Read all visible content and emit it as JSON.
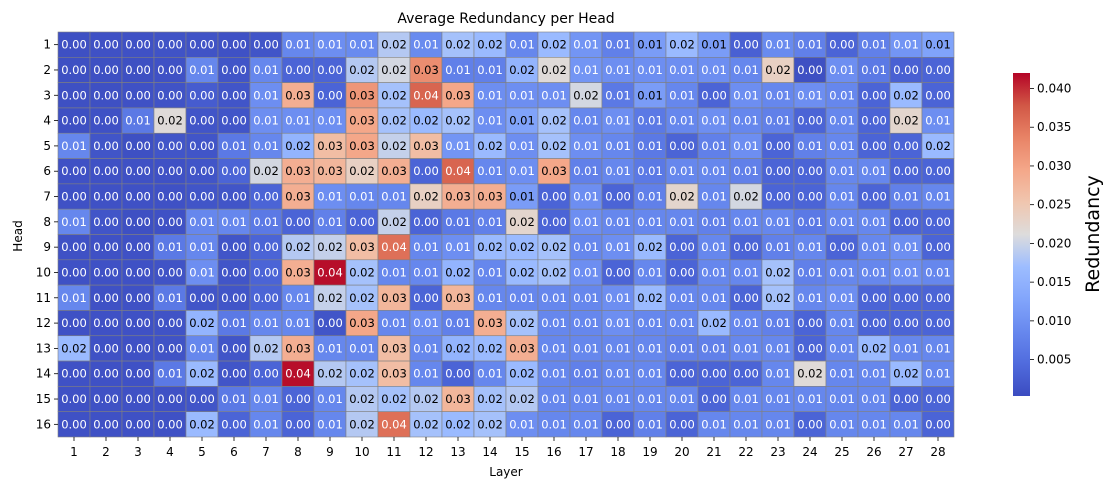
{
  "chart_data": {
    "type": "heatmap",
    "title": "Average Redundancy per Head",
    "xlabel": "Layer",
    "ylabel": "Head",
    "x": [
      "1",
      "2",
      "3",
      "4",
      "5",
      "6",
      "7",
      "8",
      "9",
      "10",
      "11",
      "12",
      "13",
      "14",
      "15",
      "16",
      "17",
      "18",
      "19",
      "20",
      "21",
      "22",
      "23",
      "24",
      "25",
      "26",
      "27",
      "28"
    ],
    "y": [
      "1",
      "2",
      "3",
      "4",
      "5",
      "6",
      "7",
      "8",
      "9",
      "10",
      "11",
      "12",
      "13",
      "14",
      "15",
      "16"
    ],
    "values": [
      [
        0.0,
        0.0,
        0.0,
        0.0,
        0.0,
        0.0,
        0.0,
        0.01,
        0.01,
        0.01,
        0.02,
        0.01,
        0.02,
        0.02,
        0.01,
        0.02,
        0.01,
        0.01,
        0.01,
        0.02,
        0.01,
        0.0,
        0.01,
        0.01,
        0.0,
        0.01,
        0.01,
        0.01
      ],
      [
        0.0,
        0.0,
        0.0,
        0.0,
        0.01,
        0.0,
        0.01,
        0.0,
        0.0,
        0.02,
        0.02,
        0.03,
        0.01,
        0.01,
        0.02,
        0.02,
        0.01,
        0.01,
        0.01,
        0.01,
        0.01,
        0.01,
        0.02,
        0.0,
        0.01,
        0.01,
        0.0,
        0.0
      ],
      [
        0.0,
        0.0,
        0.0,
        0.0,
        0.0,
        0.0,
        0.01,
        0.03,
        0.0,
        0.03,
        0.02,
        0.04,
        0.03,
        0.01,
        0.01,
        0.01,
        0.02,
        0.01,
        0.01,
        0.01,
        0.0,
        0.01,
        0.01,
        0.01,
        0.01,
        0.0,
        0.02,
        0.0
      ],
      [
        0.0,
        0.0,
        0.01,
        0.02,
        0.0,
        0.0,
        0.01,
        0.01,
        0.01,
        0.03,
        0.02,
        0.02,
        0.02,
        0.01,
        0.01,
        0.02,
        0.01,
        0.01,
        0.01,
        0.01,
        0.01,
        0.01,
        0.01,
        0.0,
        0.01,
        0.0,
        0.02,
        0.01
      ],
      [
        0.01,
        0.0,
        0.0,
        0.0,
        0.0,
        0.01,
        0.01,
        0.02,
        0.03,
        0.03,
        0.02,
        0.03,
        0.01,
        0.02,
        0.01,
        0.02,
        0.01,
        0.01,
        0.01,
        0.0,
        0.01,
        0.01,
        0.0,
        0.01,
        0.01,
        0.0,
        0.0,
        0.02
      ],
      [
        0.0,
        0.0,
        0.0,
        0.0,
        0.0,
        0.0,
        0.02,
        0.03,
        0.03,
        0.02,
        0.03,
        0.0,
        0.04,
        0.01,
        0.01,
        0.03,
        0.01,
        0.01,
        0.01,
        0.01,
        0.01,
        0.01,
        0.0,
        0.0,
        0.01,
        0.01,
        0.0,
        0.0
      ],
      [
        0.0,
        0.0,
        0.0,
        0.0,
        0.0,
        0.0,
        0.0,
        0.03,
        0.01,
        0.01,
        0.01,
        0.02,
        0.03,
        0.03,
        0.01,
        0.0,
        0.01,
        0.0,
        0.01,
        0.02,
        0.01,
        0.02,
        0.0,
        0.0,
        0.01,
        0.0,
        0.01,
        0.01
      ],
      [
        0.01,
        0.0,
        0.0,
        0.0,
        0.01,
        0.01,
        0.01,
        0.0,
        0.01,
        0.0,
        0.02,
        0.0,
        0.01,
        0.01,
        0.02,
        0.0,
        0.01,
        0.01,
        0.01,
        0.01,
        0.01,
        0.01,
        0.01,
        0.01,
        0.01,
        0.01,
        0.0,
        0.0
      ],
      [
        0.0,
        0.0,
        0.0,
        0.01,
        0.01,
        0.0,
        0.0,
        0.02,
        0.02,
        0.03,
        0.04,
        0.01,
        0.01,
        0.02,
        0.02,
        0.02,
        0.01,
        0.01,
        0.02,
        0.0,
        0.01,
        0.0,
        0.01,
        0.01,
        0.0,
        0.01,
        0.01,
        0.0
      ],
      [
        0.0,
        0.0,
        0.0,
        0.0,
        0.01,
        0.0,
        0.0,
        0.03,
        0.04,
        0.02,
        0.01,
        0.01,
        0.02,
        0.01,
        0.02,
        0.02,
        0.01,
        0.0,
        0.01,
        0.0,
        0.01,
        0.01,
        0.02,
        0.01,
        0.01,
        0.01,
        0.01,
        0.01
      ],
      [
        0.01,
        0.0,
        0.0,
        0.01,
        0.0,
        0.0,
        0.0,
        0.01,
        0.02,
        0.02,
        0.03,
        0.0,
        0.03,
        0.01,
        0.01,
        0.01,
        0.01,
        0.01,
        0.02,
        0.01,
        0.01,
        0.0,
        0.02,
        0.01,
        0.01,
        0.0,
        0.0,
        0.0
      ],
      [
        0.0,
        0.0,
        0.0,
        0.0,
        0.02,
        0.01,
        0.01,
        0.01,
        0.0,
        0.03,
        0.01,
        0.01,
        0.01,
        0.03,
        0.02,
        0.01,
        0.01,
        0.01,
        0.01,
        0.01,
        0.02,
        0.01,
        0.01,
        0.0,
        0.01,
        0.0,
        0.0,
        0.0
      ],
      [
        0.02,
        0.0,
        0.0,
        0.0,
        0.01,
        0.0,
        0.02,
        0.03,
        0.01,
        0.01,
        0.03,
        0.01,
        0.02,
        0.02,
        0.03,
        0.01,
        0.01,
        0.01,
        0.01,
        0.01,
        0.01,
        0.01,
        0.01,
        0.0,
        0.01,
        0.02,
        0.01,
        0.01
      ],
      [
        0.0,
        0.0,
        0.0,
        0.01,
        0.02,
        0.0,
        0.0,
        0.04,
        0.02,
        0.02,
        0.03,
        0.01,
        0.0,
        0.01,
        0.02,
        0.01,
        0.01,
        0.01,
        0.01,
        0.0,
        0.0,
        0.0,
        0.01,
        0.02,
        0.01,
        0.01,
        0.02,
        0.01
      ],
      [
        0.0,
        0.0,
        0.0,
        0.0,
        0.0,
        0.01,
        0.01,
        0.0,
        0.01,
        0.02,
        0.02,
        0.02,
        0.03,
        0.02,
        0.02,
        0.01,
        0.01,
        0.01,
        0.01,
        0.01,
        0.0,
        0.01,
        0.01,
        0.01,
        0.01,
        0.01,
        0.0,
        0.0
      ],
      [
        0.0,
        0.0,
        0.0,
        0.0,
        0.02,
        0.0,
        0.01,
        0.0,
        0.01,
        0.02,
        0.04,
        0.02,
        0.02,
        0.02,
        0.01,
        0.01,
        0.01,
        0.0,
        0.01,
        0.0,
        0.01,
        0.01,
        0.01,
        0.0,
        0.01,
        0.01,
        0.01,
        0.0
      ]
    ],
    "display": [
      [
        0.0008,
        0.001,
        0.001,
        0.0012,
        0.0012,
        0.001,
        0.0015,
        0.0085,
        0.0095,
        0.009,
        0.0185,
        0.009,
        0.0175,
        0.0165,
        0.0085,
        0.0165,
        0.0105,
        0.0075,
        0.0115,
        0.0165,
        0.0115,
        0.003,
        0.009,
        0.0075,
        0.0035,
        0.0075,
        0.0105,
        0.0125
      ],
      [
        0.0008,
        0.0008,
        0.0008,
        0.001,
        0.0085,
        0.0015,
        0.0085,
        0.0035,
        0.0035,
        0.0185,
        0.0205,
        0.0325,
        0.0075,
        0.0075,
        0.0155,
        0.0215,
        0.0105,
        0.0095,
        0.0095,
        0.0095,
        0.0095,
        0.0085,
        0.0235,
        0.0008,
        0.0095,
        0.0065,
        0.003,
        0.0035
      ],
      [
        0.0008,
        0.0008,
        0.001,
        0.0012,
        0.0025,
        0.0015,
        0.0095,
        0.0285,
        0.0035,
        0.0315,
        0.0175,
        0.0365,
        0.0295,
        0.0095,
        0.0095,
        0.0095,
        0.0205,
        0.0065,
        0.0115,
        0.0085,
        0.0035,
        0.0095,
        0.0085,
        0.0095,
        0.0085,
        0.0035,
        0.0165,
        0.0035
      ],
      [
        0.0008,
        0.001,
        0.0065,
        0.0215,
        0.0015,
        0.0015,
        0.0095,
        0.0095,
        0.0095,
        0.0295,
        0.0175,
        0.0165,
        0.0175,
        0.0095,
        0.0125,
        0.0175,
        0.0085,
        0.0095,
        0.0065,
        0.0085,
        0.0095,
        0.0085,
        0.0075,
        0.0035,
        0.0085,
        0.0035,
        0.0225,
        0.0095
      ],
      [
        0.0085,
        0.0015,
        0.0008,
        0.0015,
        0.0015,
        0.0065,
        0.0085,
        0.0155,
        0.0265,
        0.0295,
        0.0195,
        0.0265,
        0.0105,
        0.0165,
        0.0095,
        0.0175,
        0.0095,
        0.0085,
        0.0065,
        0.0035,
        0.0075,
        0.0095,
        0.0035,
        0.0075,
        0.0085,
        0.0035,
        0.0035,
        0.0165
      ],
      [
        0.001,
        0.001,
        0.001,
        0.001,
        0.0015,
        0.0035,
        0.0205,
        0.0285,
        0.0275,
        0.0235,
        0.0285,
        0.0035,
        0.0365,
        0.0085,
        0.0095,
        0.0295,
        0.0075,
        0.0085,
        0.0065,
        0.0085,
        0.0085,
        0.0075,
        0.0035,
        0.0035,
        0.0085,
        0.0085,
        0.0035,
        0.0035
      ],
      [
        0.001,
        0.001,
        0.001,
        0.001,
        0.0015,
        0.0015,
        0.0035,
        0.0285,
        0.0095,
        0.0085,
        0.0085,
        0.0235,
        0.0285,
        0.0285,
        0.0115,
        0.0035,
        0.0095,
        0.0035,
        0.0075,
        0.0225,
        0.0085,
        0.0205,
        0.0035,
        0.0035,
        0.0085,
        0.0035,
        0.0075,
        0.0085
      ],
      [
        0.0085,
        0.0015,
        0.0008,
        0.001,
        0.0085,
        0.0085,
        0.0065,
        0.0035,
        0.0075,
        0.0035,
        0.0195,
        0.0035,
        0.0065,
        0.0075,
        0.0225,
        0.0035,
        0.0095,
        0.0085,
        0.0085,
        0.0085,
        0.0075,
        0.0085,
        0.0085,
        0.0065,
        0.0085,
        0.0085,
        0.0035,
        0.0035
      ],
      [
        0.001,
        0.001,
        0.001,
        0.0065,
        0.0085,
        0.0015,
        0.0035,
        0.0185,
        0.0195,
        0.0265,
        0.0355,
        0.0085,
        0.0095,
        0.0165,
        0.0165,
        0.0175,
        0.0085,
        0.0095,
        0.0165,
        0.0035,
        0.0085,
        0.0035,
        0.0075,
        0.0085,
        0.0035,
        0.0085,
        0.0095,
        0.0035
      ],
      [
        0.001,
        0.001,
        0.001,
        0.0012,
        0.0095,
        0.0015,
        0.0035,
        0.0285,
        0.0415,
        0.0175,
        0.0085,
        0.0085,
        0.0155,
        0.0085,
        0.0165,
        0.0175,
        0.0095,
        0.0035,
        0.0085,
        0.0035,
        0.0085,
        0.0085,
        0.0175,
        0.0075,
        0.0085,
        0.0085,
        0.0095,
        0.0085
      ],
      [
        0.0085,
        0.001,
        0.001,
        0.0065,
        0.0015,
        0.0015,
        0.0035,
        0.0085,
        0.0195,
        0.0175,
        0.0275,
        0.0035,
        0.0275,
        0.0085,
        0.0085,
        0.0085,
        0.0085,
        0.0095,
        0.0165,
        0.0085,
        0.0085,
        0.0035,
        0.0175,
        0.0085,
        0.0095,
        0.0035,
        0.0035,
        0.0035
      ],
      [
        0.001,
        0.001,
        0.001,
        0.0012,
        0.0155,
        0.0065,
        0.0085,
        0.0085,
        0.0015,
        0.0295,
        0.0085,
        0.0095,
        0.0075,
        0.0285,
        0.0175,
        0.0085,
        0.0085,
        0.0095,
        0.0085,
        0.0085,
        0.0165,
        0.0085,
        0.0075,
        0.0035,
        0.0085,
        0.0035,
        0.0035,
        0.0035
      ],
      [
        0.0165,
        0.001,
        0.001,
        0.0012,
        0.0085,
        0.0015,
        0.0185,
        0.0285,
        0.0085,
        0.0085,
        0.0265,
        0.0085,
        0.0155,
        0.0165,
        0.0285,
        0.0085,
        0.0085,
        0.0085,
        0.0085,
        0.0075,
        0.0075,
        0.0085,
        0.0085,
        0.0035,
        0.0085,
        0.0165,
        0.0085,
        0.0085
      ],
      [
        0.001,
        0.001,
        0.001,
        0.0065,
        0.0165,
        0.0015,
        0.0035,
        0.0415,
        0.0185,
        0.0175,
        0.0265,
        0.0085,
        0.0035,
        0.0085,
        0.0165,
        0.0085,
        0.0075,
        0.0085,
        0.0085,
        0.0035,
        0.0035,
        0.0035,
        0.0085,
        0.0215,
        0.0085,
        0.0085,
        0.0165,
        0.0085
      ],
      [
        0.001,
        0.001,
        0.001,
        0.001,
        0.0015,
        0.0065,
        0.0085,
        0.0035,
        0.0085,
        0.0185,
        0.0175,
        0.0185,
        0.0275,
        0.0175,
        0.0185,
        0.0085,
        0.0085,
        0.0085,
        0.0085,
        0.0085,
        0.0035,
        0.0085,
        0.0085,
        0.0085,
        0.0085,
        0.0085,
        0.0035,
        0.0035
      ],
      [
        0.001,
        0.001,
        0.001,
        0.001,
        0.0165,
        0.0035,
        0.0085,
        0.0035,
        0.0085,
        0.0185,
        0.0355,
        0.0175,
        0.0165,
        0.0175,
        0.0095,
        0.0085,
        0.0085,
        0.0035,
        0.0075,
        0.0035,
        0.0085,
        0.0085,
        0.0085,
        0.0035,
        0.0085,
        0.0085,
        0.0085,
        0.0035
      ]
    ],
    "color_range": [
      0.0003,
      0.042
    ],
    "colormap": "coolwarm",
    "colorbar": {
      "label": "Redundancy",
      "ticks": [
        0.005,
        0.01,
        0.015,
        0.02,
        0.025,
        0.03,
        0.035,
        0.04
      ],
      "tick_labels": [
        "0.005",
        "0.010",
        "0.015",
        "0.020",
        "0.025",
        "0.030",
        "0.035",
        "0.040"
      ]
    },
    "annotation_format": "2 decimals",
    "grid": false,
    "cell_border_color": "#808080"
  }
}
